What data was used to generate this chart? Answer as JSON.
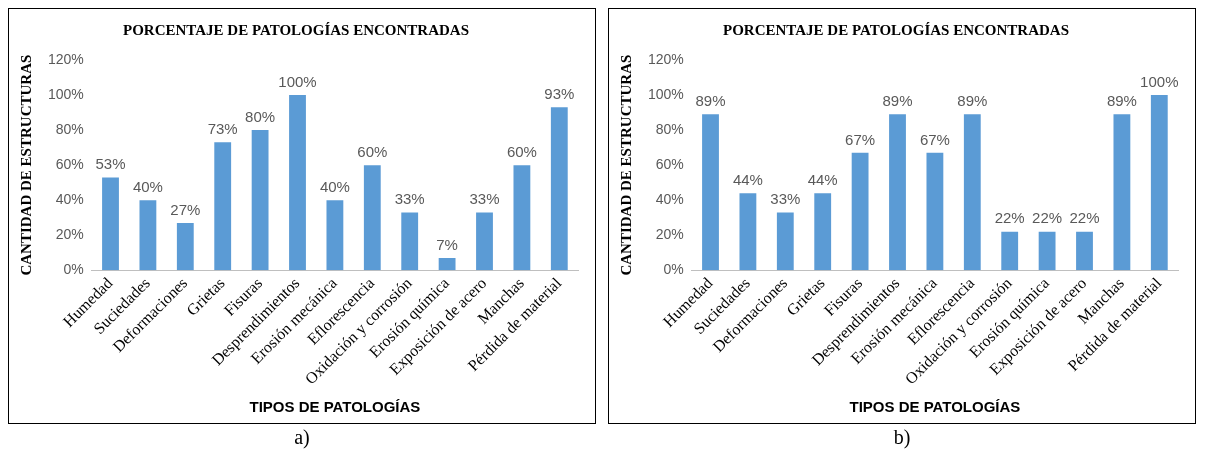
{
  "chart_data": [
    {
      "type": "bar",
      "title": "PORCENTAJE DE PATOLOGÍAS ENCONTRADAS",
      "xlabel": "TIPOS DE PATOLOGÍAS",
      "ylabel": "CANTIDAD DE ESTRUCTURAS",
      "annotations": [
        "a)"
      ],
      "categories": [
        "Humedad",
        "Suciedades",
        "Deformaciones",
        "Grietas",
        "Fisuras",
        "Desprendimientos",
        "Erosión mecánica",
        "Eflorescencia",
        "Oxidación y corrosión",
        "Erosión química",
        "Exposición de acero",
        "Manchas",
        "Pérdida de material"
      ],
      "values": [
        53,
        40,
        27,
        73,
        80,
        100,
        40,
        60,
        33,
        7,
        33,
        60,
        93
      ],
      "value_labels": [
        "53%",
        "40%",
        "27%",
        "73%",
        "80%",
        "100%",
        "40%",
        "60%",
        "33%",
        "7%",
        "33%",
        "60%",
        "93%"
      ],
      "color": "#5b9bd5",
      "ylim": [
        0,
        120
      ],
      "yticks": [
        {
          "value": 0,
          "label": "0%"
        },
        {
          "value": 20,
          "label": "20%"
        },
        {
          "value": 40,
          "label": "40%"
        },
        {
          "value": 60,
          "label": "60%"
        },
        {
          "value": 80,
          "label": "80%"
        },
        {
          "value": 100,
          "label": "100%"
        },
        {
          "value": 120,
          "label": "120%"
        }
      ],
      "grid": false,
      "legend": false
    },
    {
      "type": "bar",
      "title": "PORCENTAJE DE PATOLOGÍAS ENCONTRADAS",
      "xlabel": "TIPOS DE PATOLOGÍAS",
      "ylabel": "CANTIDAD DE ESTRUCTURAS",
      "annotations": [
        "b)"
      ],
      "categories": [
        "Humedad",
        "Suciedades",
        "Deformaciones",
        "Grietas",
        "Fisuras",
        "Desprendimientos",
        "Erosión mecánica",
        "Eflorescencia",
        "Oxidación y corrosión",
        "Erosión química",
        "Exposición de acero",
        "Manchas",
        "Pérdida de material"
      ],
      "values": [
        89,
        44,
        33,
        44,
        67,
        89,
        67,
        89,
        22,
        22,
        22,
        89,
        100
      ],
      "value_labels": [
        "89%",
        "44%",
        "33%",
        "44%",
        "67%",
        "89%",
        "67%",
        "89%",
        "22%",
        "22%",
        "22%",
        "89%",
        "100%"
      ],
      "color": "#5b9bd5",
      "ylim": [
        0,
        120
      ],
      "yticks": [
        {
          "value": 0,
          "label": "0%"
        },
        {
          "value": 20,
          "label": "20%"
        },
        {
          "value": 40,
          "label": "40%"
        },
        {
          "value": 60,
          "label": "60%"
        },
        {
          "value": 80,
          "label": "80%"
        },
        {
          "value": 100,
          "label": "100%"
        },
        {
          "value": 120,
          "label": "120%"
        }
      ],
      "grid": false,
      "legend": false
    }
  ]
}
